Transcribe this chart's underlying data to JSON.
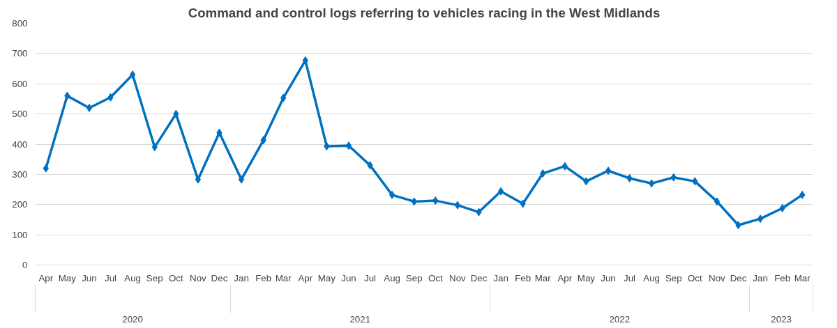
{
  "chart_data": {
    "type": "line",
    "title": "Command and control logs referring to vehicles racing in the West Midlands",
    "x": [
      "2020-04",
      "2020-05",
      "2020-06",
      "2020-07",
      "2020-08",
      "2020-09",
      "2020-10",
      "2020-11",
      "2020-12",
      "2021-01",
      "2021-02",
      "2021-03",
      "2021-04",
      "2021-05",
      "2021-06",
      "2021-07",
      "2021-08",
      "2021-09",
      "2021-10",
      "2021-11",
      "2021-12",
      "2022-01",
      "2022-02",
      "2022-03",
      "2022-04",
      "2022-05",
      "2022-06",
      "2022-07",
      "2022-08",
      "2022-09",
      "2022-10",
      "2022-11",
      "2022-12",
      "2023-01",
      "2023-02",
      "2023-03"
    ],
    "xlim": [
      "2020-03-17",
      "2023-03-16"
    ],
    "xticks": [
      {
        "value": "2020-04",
        "label": "Apr"
      },
      {
        "value": "2020-05",
        "label": "May"
      },
      {
        "value": "2020-06",
        "label": "Jun"
      },
      {
        "value": "2020-07",
        "label": "Jul"
      },
      {
        "value": "2020-08",
        "label": "Aug"
      },
      {
        "value": "2020-09",
        "label": "Sep"
      },
      {
        "value": "2020-10",
        "label": "Oct"
      },
      {
        "value": "2020-11",
        "label": "Nov"
      },
      {
        "value": "2020-12",
        "label": "Dec"
      },
      {
        "value": "2021-01",
        "label": "Jan"
      },
      {
        "value": "2021-02",
        "label": "Feb"
      },
      {
        "value": "2021-03",
        "label": "Mar"
      },
      {
        "value": "2021-04",
        "label": "Apr"
      },
      {
        "value": "2021-05",
        "label": "May"
      },
      {
        "value": "2021-06",
        "label": "Jun"
      },
      {
        "value": "2021-07",
        "label": "Jul"
      },
      {
        "value": "2021-08",
        "label": "Aug"
      },
      {
        "value": "2021-09",
        "label": "Sep"
      },
      {
        "value": "2021-10",
        "label": "Oct"
      },
      {
        "value": "2021-11",
        "label": "Nov"
      },
      {
        "value": "2021-12",
        "label": "Dec"
      },
      {
        "value": "2022-01",
        "label": "Jan"
      },
      {
        "value": "2022-02",
        "label": "Feb"
      },
      {
        "value": "2022-03",
        "label": "Mar"
      },
      {
        "value": "2022-04",
        "label": "Apr"
      },
      {
        "value": "2022-05",
        "label": "May"
      },
      {
        "value": "2022-06",
        "label": "Jun"
      },
      {
        "value": "2022-07",
        "label": "Jul"
      },
      {
        "value": "2022-08",
        "label": "Aug"
      },
      {
        "value": "2022-09",
        "label": "Sep"
      },
      {
        "value": "2022-10",
        "label": "Oct"
      },
      {
        "value": "2022-11",
        "label": "Nov"
      },
      {
        "value": "2022-12",
        "label": "Dec"
      },
      {
        "value": "2023-01",
        "label": "Jan"
      },
      {
        "value": "2023-02",
        "label": "Feb"
      },
      {
        "value": "2023-03",
        "label": "Mar"
      }
    ],
    "series": [
      {
        "color": "#0070c0",
        "values": [
          320,
          560,
          520,
          555,
          630,
          390,
          500,
          283,
          438,
          283,
          413,
          553,
          677,
          393,
          395,
          330,
          232,
          210,
          213,
          198,
          175,
          244,
          203,
          303,
          327,
          277,
          312,
          287,
          270,
          290,
          277,
          210,
          132,
          153,
          188,
          232
        ]
      }
    ],
    "annotations": [
      "2020",
      "2021",
      "2022",
      "2023"
    ],
    "ylim": [
      0,
      800
    ],
    "yticks": [
      0,
      100,
      200,
      300,
      400,
      500,
      600,
      700,
      800
    ],
    "grid": "y",
    "marker": "diamond",
    "line_style": "solid"
  }
}
